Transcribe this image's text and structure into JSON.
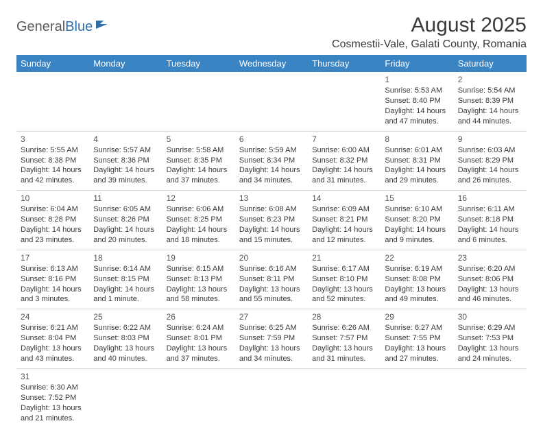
{
  "logo": {
    "general": "General",
    "blue": "Blue"
  },
  "title": "August 2025",
  "subtitle": "Cosmestii-Vale, Galati County, Romania",
  "headers": [
    "Sunday",
    "Monday",
    "Tuesday",
    "Wednesday",
    "Thursday",
    "Friday",
    "Saturday"
  ],
  "colors": {
    "header_bg": "#3b84c4",
    "header_fg": "#ffffff",
    "text": "#3a3a3a",
    "border": "#d8d8d8"
  },
  "weeks": [
    [
      null,
      null,
      null,
      null,
      null,
      {
        "n": "1",
        "sr": "5:53 AM",
        "ss": "8:40 PM",
        "dl": "14 hours and 47 minutes."
      },
      {
        "n": "2",
        "sr": "5:54 AM",
        "ss": "8:39 PM",
        "dl": "14 hours and 44 minutes."
      }
    ],
    [
      {
        "n": "3",
        "sr": "5:55 AM",
        "ss": "8:38 PM",
        "dl": "14 hours and 42 minutes."
      },
      {
        "n": "4",
        "sr": "5:57 AM",
        "ss": "8:36 PM",
        "dl": "14 hours and 39 minutes."
      },
      {
        "n": "5",
        "sr": "5:58 AM",
        "ss": "8:35 PM",
        "dl": "14 hours and 37 minutes."
      },
      {
        "n": "6",
        "sr": "5:59 AM",
        "ss": "8:34 PM",
        "dl": "14 hours and 34 minutes."
      },
      {
        "n": "7",
        "sr": "6:00 AM",
        "ss": "8:32 PM",
        "dl": "14 hours and 31 minutes."
      },
      {
        "n": "8",
        "sr": "6:01 AM",
        "ss": "8:31 PM",
        "dl": "14 hours and 29 minutes."
      },
      {
        "n": "9",
        "sr": "6:03 AM",
        "ss": "8:29 PM",
        "dl": "14 hours and 26 minutes."
      }
    ],
    [
      {
        "n": "10",
        "sr": "6:04 AM",
        "ss": "8:28 PM",
        "dl": "14 hours and 23 minutes."
      },
      {
        "n": "11",
        "sr": "6:05 AM",
        "ss": "8:26 PM",
        "dl": "14 hours and 20 minutes."
      },
      {
        "n": "12",
        "sr": "6:06 AM",
        "ss": "8:25 PM",
        "dl": "14 hours and 18 minutes."
      },
      {
        "n": "13",
        "sr": "6:08 AM",
        "ss": "8:23 PM",
        "dl": "14 hours and 15 minutes."
      },
      {
        "n": "14",
        "sr": "6:09 AM",
        "ss": "8:21 PM",
        "dl": "14 hours and 12 minutes."
      },
      {
        "n": "15",
        "sr": "6:10 AM",
        "ss": "8:20 PM",
        "dl": "14 hours and 9 minutes."
      },
      {
        "n": "16",
        "sr": "6:11 AM",
        "ss": "8:18 PM",
        "dl": "14 hours and 6 minutes."
      }
    ],
    [
      {
        "n": "17",
        "sr": "6:13 AM",
        "ss": "8:16 PM",
        "dl": "14 hours and 3 minutes."
      },
      {
        "n": "18",
        "sr": "6:14 AM",
        "ss": "8:15 PM",
        "dl": "14 hours and 1 minute."
      },
      {
        "n": "19",
        "sr": "6:15 AM",
        "ss": "8:13 PM",
        "dl": "13 hours and 58 minutes."
      },
      {
        "n": "20",
        "sr": "6:16 AM",
        "ss": "8:11 PM",
        "dl": "13 hours and 55 minutes."
      },
      {
        "n": "21",
        "sr": "6:17 AM",
        "ss": "8:10 PM",
        "dl": "13 hours and 52 minutes."
      },
      {
        "n": "22",
        "sr": "6:19 AM",
        "ss": "8:08 PM",
        "dl": "13 hours and 49 minutes."
      },
      {
        "n": "23",
        "sr": "6:20 AM",
        "ss": "8:06 PM",
        "dl": "13 hours and 46 minutes."
      }
    ],
    [
      {
        "n": "24",
        "sr": "6:21 AM",
        "ss": "8:04 PM",
        "dl": "13 hours and 43 minutes."
      },
      {
        "n": "25",
        "sr": "6:22 AM",
        "ss": "8:03 PM",
        "dl": "13 hours and 40 minutes."
      },
      {
        "n": "26",
        "sr": "6:24 AM",
        "ss": "8:01 PM",
        "dl": "13 hours and 37 minutes."
      },
      {
        "n": "27",
        "sr": "6:25 AM",
        "ss": "7:59 PM",
        "dl": "13 hours and 34 minutes."
      },
      {
        "n": "28",
        "sr": "6:26 AM",
        "ss": "7:57 PM",
        "dl": "13 hours and 31 minutes."
      },
      {
        "n": "29",
        "sr": "6:27 AM",
        "ss": "7:55 PM",
        "dl": "13 hours and 27 minutes."
      },
      {
        "n": "30",
        "sr": "6:29 AM",
        "ss": "7:53 PM",
        "dl": "13 hours and 24 minutes."
      }
    ],
    [
      {
        "n": "31",
        "sr": "6:30 AM",
        "ss": "7:52 PM",
        "dl": "13 hours and 21 minutes."
      },
      null,
      null,
      null,
      null,
      null,
      null
    ]
  ],
  "labels": {
    "sunrise": "Sunrise: ",
    "sunset": "Sunset: ",
    "daylight": "Daylight: "
  }
}
